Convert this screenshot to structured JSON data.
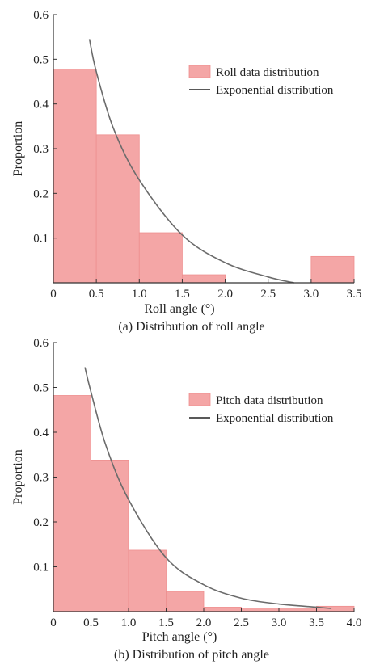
{
  "colors": {
    "bar_fill": "#f4a6a6",
    "bar_edge": "#ee8f8f",
    "curve": "#6b6b6b",
    "axis": "#333333"
  },
  "chart_data": [
    {
      "type": "bar",
      "caption": "(a) Distribution of roll angle",
      "xlabel": "Roll angle (°)",
      "ylabel": "Proportion",
      "xlim": [
        0,
        3.5
      ],
      "ylim": [
        0,
        0.6
      ],
      "xticks": [
        0,
        0.5,
        1.0,
        1.5,
        2.0,
        2.5,
        3.0,
        3.5
      ],
      "xtick_labels": [
        "0",
        "0.5",
        "1.0",
        "1.5",
        "2.0",
        "2.5",
        "3.0",
        "3.5"
      ],
      "yticks": [
        0.1,
        0.2,
        0.3,
        0.4,
        0.5,
        0.6
      ],
      "ytick_labels": [
        "0.1",
        "0.2",
        "0.3",
        "0.4",
        "0.5",
        "0.6"
      ],
      "legend_placement": "upper-right",
      "series": [
        {
          "name": "Roll data distribution",
          "kind": "histogram",
          "bins": [
            [
              0,
              0.5
            ],
            [
              0.5,
              1.0
            ],
            [
              1.0,
              1.5
            ],
            [
              1.5,
              2.0
            ],
            [
              2.0,
              2.5
            ],
            [
              2.5,
              3.0
            ],
            [
              3.0,
              3.5
            ]
          ],
          "values": [
            0.478,
            0.331,
            0.112,
            0.018,
            0.0,
            0.0,
            0.059
          ]
        },
        {
          "name": "Exponential distribution",
          "kind": "line",
          "x": [
            0.42,
            0.5,
            0.7,
            1.0,
            1.5,
            2.0,
            2.5,
            2.8
          ],
          "y": [
            0.545,
            0.472,
            0.345,
            0.23,
            0.107,
            0.045,
            0.013,
            0.0
          ]
        }
      ]
    },
    {
      "type": "bar",
      "caption": "(b) Distribution of pitch angle",
      "xlabel": "Pitch angle (°)",
      "ylabel": "Proportion",
      "xlim": [
        0,
        4.0
      ],
      "ylim": [
        0,
        0.6
      ],
      "xticks": [
        0,
        0.5,
        1.0,
        1.5,
        2.0,
        2.5,
        3.0,
        3.5,
        4.0
      ],
      "xtick_labels": [
        "0",
        "0.5",
        "1.0",
        "1.5",
        "2.0",
        "2.5",
        "3.0",
        "3.5",
        "4.0"
      ],
      "yticks": [
        0.1,
        0.2,
        0.3,
        0.4,
        0.5,
        0.6
      ],
      "ytick_labels": [
        "0.1",
        "0.2",
        "0.3",
        "0.4",
        "0.5",
        "0.6"
      ],
      "legend_placement": "upper-right",
      "series": [
        {
          "name": "Pitch data distribution",
          "kind": "histogram",
          "bins": [
            [
              0,
              0.5
            ],
            [
              0.5,
              1.0
            ],
            [
              1.0,
              1.5
            ],
            [
              1.5,
              2.0
            ],
            [
              2.0,
              2.5
            ],
            [
              2.5,
              3.0
            ],
            [
              3.0,
              3.5
            ],
            [
              3.5,
              4.0
            ]
          ],
          "values": [
            0.482,
            0.338,
            0.137,
            0.045,
            0.01,
            0.008,
            0.008,
            0.012
          ]
        },
        {
          "name": "Exponential distribution",
          "kind": "line",
          "x": [
            0.42,
            0.5,
            0.7,
            1.0,
            1.5,
            2.0,
            2.5,
            3.0,
            3.5,
            3.7
          ],
          "y": [
            0.545,
            0.49,
            0.37,
            0.25,
            0.12,
            0.06,
            0.03,
            0.017,
            0.01,
            0.007
          ]
        }
      ]
    }
  ]
}
